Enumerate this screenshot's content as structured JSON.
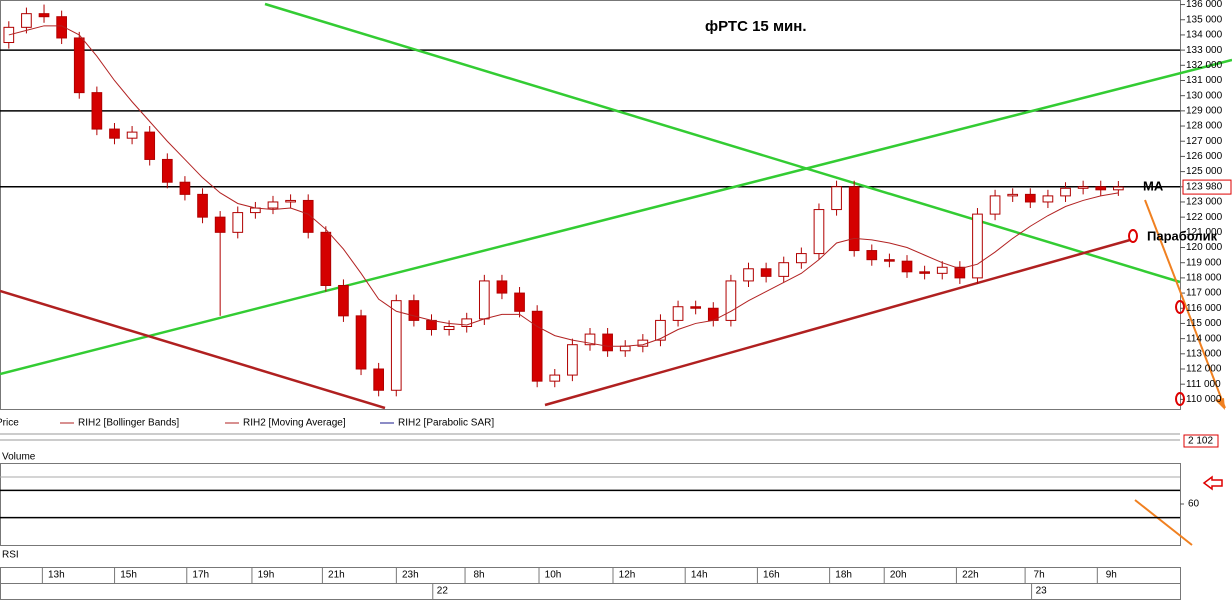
{
  "chart_data": {
    "type": "candlestick",
    "title": "фРТС   15 мин.",
    "open": [
      133500,
      134500,
      135400,
      135200,
      133800,
      130200,
      127800,
      127200,
      127600,
      125800,
      124300,
      123500,
      122000,
      121000,
      122300,
      122600,
      123000,
      123100,
      121000,
      117500,
      115500,
      112000,
      110600,
      116500,
      115200,
      114600,
      114800,
      115300,
      117800,
      117000,
      115800,
      111200,
      111600,
      113600,
      114300,
      113200,
      113500,
      113900,
      115200,
      116100,
      116000,
      115200,
      117800,
      118600,
      118100,
      119000,
      119600,
      122500,
      124000,
      119800,
      119200,
      119100,
      118400,
      118300,
      118700,
      118000,
      122200,
      123400,
      123500,
      123000,
      123400,
      123900,
      124000,
      123800
    ],
    "high": [
      134900,
      135800,
      136000,
      135600,
      134200,
      130600,
      128200,
      128000,
      128000,
      126200,
      124700,
      123900,
      122400,
      122700,
      123000,
      123400,
      123500,
      123500,
      121400,
      117900,
      115900,
      112400,
      116900,
      116900,
      115600,
      115200,
      115700,
      118200,
      118200,
      117400,
      116200,
      112000,
      114000,
      114700,
      114700,
      113900,
      114300,
      115600,
      116500,
      116500,
      116400,
      118200,
      119000,
      119000,
      119400,
      120000,
      122900,
      124400,
      124400,
      120200,
      119600,
      119500,
      118800,
      119100,
      119100,
      122600,
      123800,
      123900,
      123900,
      123800,
      124300,
      124400,
      124400,
      124380
    ],
    "low": [
      133100,
      134100,
      134800,
      133400,
      129800,
      127400,
      126800,
      126800,
      125400,
      123900,
      123100,
      121600,
      115500,
      120600,
      121900,
      122200,
      122600,
      120600,
      117100,
      115100,
      111600,
      110200,
      110200,
      114800,
      114200,
      114200,
      114400,
      114900,
      116600,
      115400,
      110800,
      110800,
      111200,
      113200,
      112800,
      112800,
      113100,
      113500,
      114800,
      115600,
      114800,
      114800,
      117400,
      117700,
      117700,
      118600,
      119200,
      122100,
      119400,
      118800,
      118700,
      118000,
      117900,
      117900,
      117600,
      117600,
      121800,
      123000,
      122600,
      122600,
      123000,
      123500,
      123400,
      123400
    ],
    "close": [
      134500,
      135400,
      135200,
      133800,
      130200,
      127800,
      127200,
      127600,
      125800,
      124300,
      123500,
      122000,
      121000,
      122300,
      122600,
      123000,
      123100,
      121000,
      117500,
      115500,
      112000,
      110600,
      116500,
      115200,
      114600,
      114800,
      115300,
      117800,
      117000,
      115800,
      111200,
      111600,
      113600,
      114300,
      113200,
      113500,
      113900,
      115200,
      116100,
      116000,
      115200,
      117800,
      118600,
      118100,
      119000,
      119600,
      122500,
      124000,
      119800,
      119200,
      119100,
      118400,
      118300,
      118700,
      118000,
      122200,
      123400,
      123500,
      123000,
      123400,
      123900,
      124000,
      123800,
      123980
    ],
    "up_color": "#ffffff",
    "down_color": "#d40000",
    "series": [
      {
        "name": "RIH2 [Moving Average]",
        "color": "#b22222",
        "values": [
          134000,
          134300,
          134600,
          134600,
          134000,
          132600,
          131000,
          129600,
          128300,
          127000,
          125800,
          124600,
          123600,
          122900,
          122600,
          122500,
          122600,
          122200,
          121200,
          119900,
          118300,
          116600,
          115800,
          115500,
          115200,
          115000,
          114900,
          115300,
          115600,
          115600,
          114800,
          114200,
          113900,
          113700,
          113500,
          113500,
          113600,
          114000,
          114600,
          115000,
          115200,
          115800,
          116500,
          117100,
          117700,
          118300,
          119200,
          120300,
          120600,
          120500,
          120300,
          120000,
          119500,
          119000,
          118600,
          118900,
          119700,
          120600,
          121400,
          122100,
          122700,
          123100,
          123400,
          123600
        ]
      }
    ],
    "legend": [
      "Price",
      "RIH2 [Bollinger Bands]",
      "RIH2 [Moving Average]",
      "RIH2 [Parabolic SAR]"
    ],
    "xlim": [
      -0.5,
      66.5
    ],
    "ylim": [
      109300,
      136300
    ],
    "yticks": [
      {
        "value": 110000,
        "label": "110 000"
      },
      {
        "value": 111000,
        "label": "111 000"
      },
      {
        "value": 112000,
        "label": "112 000"
      },
      {
        "value": 113000,
        "label": "113 000"
      },
      {
        "value": 114000,
        "label": "114 000"
      },
      {
        "value": 115000,
        "label": "115 000"
      },
      {
        "value": 116000,
        "label": "116 000"
      },
      {
        "value": 117000,
        "label": "117 000"
      },
      {
        "value": 118000,
        "label": "118 000"
      },
      {
        "value": 119000,
        "label": "119 000"
      },
      {
        "value": 120000,
        "label": "120 000"
      },
      {
        "value": 121000,
        "label": "121 000"
      },
      {
        "value": 122000,
        "label": "122 000"
      },
      {
        "value": 123000,
        "label": "123 000"
      },
      {
        "value": 124000,
        "label": "124 000"
      },
      {
        "value": 125000,
        "label": "125 000"
      },
      {
        "value": 126000,
        "label": "126 000"
      },
      {
        "value": 127000,
        "label": "127 000"
      },
      {
        "value": 128000,
        "label": "128 000"
      },
      {
        "value": 129000,
        "label": "129 000"
      },
      {
        "value": 130000,
        "label": "130 000"
      },
      {
        "value": 131000,
        "label": "131 000"
      },
      {
        "value": 132000,
        "label": "132 000"
      },
      {
        "value": 133000,
        "label": "133 000"
      },
      {
        "value": 134000,
        "label": "134 000"
      },
      {
        "value": 135000,
        "label": "135 000"
      },
      {
        "value": 136000,
        "label": "136 000"
      }
    ],
    "xticks": [
      {
        "value": 2.7,
        "label": "13h"
      },
      {
        "value": 6.8,
        "label": "15h"
      },
      {
        "value": 10.9,
        "label": "17h"
      },
      {
        "value": 14.6,
        "label": "19h"
      },
      {
        "value": 18.6,
        "label": "21h"
      },
      {
        "value": 22.8,
        "label": "23h"
      },
      {
        "value": 26.7,
        "label": "8h"
      },
      {
        "value": 30.9,
        "label": "10h"
      },
      {
        "value": 35.1,
        "label": "12h"
      },
      {
        "value": 39.2,
        "label": "14h"
      },
      {
        "value": 43.3,
        "label": "16h"
      },
      {
        "value": 47.4,
        "label": "18h"
      },
      {
        "value": 50.5,
        "label": "20h"
      },
      {
        "value": 54.6,
        "label": "22h"
      },
      {
        "value": 58.5,
        "label": "7h"
      },
      {
        "value": 62.6,
        "label": "9h"
      }
    ],
    "date_ticks": [
      {
        "value": 24.3,
        "label": "22"
      },
      {
        "value": 58.3,
        "label": "23"
      }
    ],
    "levels": [
      133000,
      129000,
      124000
    ],
    "last_price": {
      "value": 123980,
      "label": "123 980"
    },
    "annotations": [
      "MA",
      "Параболик"
    ],
    "volume": {
      "label": "Volume",
      "last": {
        "value": 2102,
        "label": "2 102"
      }
    },
    "rsi": {
      "label": "RSI",
      "ylim": [
        30,
        90
      ],
      "yticks": [
        60
      ],
      "levels": [
        70,
        50
      ]
    }
  }
}
